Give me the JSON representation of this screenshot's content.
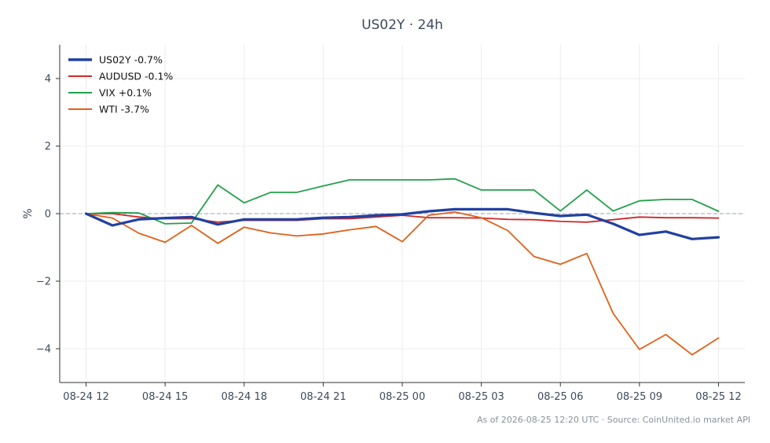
{
  "chart_data": {
    "type": "line",
    "title": "US02Y · 24h",
    "xlabel": "",
    "ylabel": "%",
    "x": [
      "08-24 12:00",
      "08-24 13:00",
      "08-24 14:00",
      "08-24 15:00",
      "08-24 16:00",
      "08-24 17:00",
      "08-24 18:00",
      "08-24 19:00",
      "08-24 20:00",
      "08-24 21:00",
      "08-24 22:00",
      "08-24 23:00",
      "08-25 00:00",
      "08-25 01:00",
      "08-25 02:00",
      "08-25 03:00",
      "08-25 04:00",
      "08-25 05:00",
      "08-25 06:00",
      "08-25 07:00",
      "08-25 08:00",
      "08-25 09:00",
      "08-25 10:00",
      "08-25 11:00",
      "08-25 12:00"
    ],
    "x_ticks": [
      "08-24 12",
      "08-24 15",
      "08-24 18",
      "08-24 21",
      "08-25 00",
      "08-25 03",
      "08-25 06",
      "08-25 09",
      "08-25 12"
    ],
    "y_ticks": [
      4,
      2,
      0,
      -2,
      -4
    ],
    "y_tick_labels": [
      "4",
      "2",
      "0",
      "−2",
      "−4"
    ],
    "ylim": [
      -5,
      5
    ],
    "xlim_hours": [
      -1,
      25
    ],
    "grid": true,
    "zero_line": true,
    "legend_position": "top-left",
    "series": [
      {
        "name": "US02Y -0.7%",
        "color": "#2140a0",
        "width": 3.2,
        "values": [
          0.0,
          -0.35,
          -0.17,
          -0.13,
          -0.1,
          -0.32,
          -0.17,
          -0.17,
          -0.17,
          -0.12,
          -0.1,
          -0.05,
          -0.02,
          0.07,
          0.13,
          0.13,
          0.13,
          0.02,
          -0.07,
          -0.03,
          -0.3,
          -0.63,
          -0.53,
          -0.75,
          -0.7
        ]
      },
      {
        "name": "AUDUSD -0.1%",
        "color": "#cc2a2a",
        "width": 1.8,
        "values": [
          0.0,
          0.0,
          -0.1,
          -0.15,
          -0.15,
          -0.25,
          -0.2,
          -0.2,
          -0.2,
          -0.15,
          -0.15,
          -0.1,
          -0.05,
          -0.12,
          -0.12,
          -0.13,
          -0.17,
          -0.18,
          -0.23,
          -0.25,
          -0.18,
          -0.1,
          -0.12,
          -0.12,
          -0.13
        ]
      },
      {
        "name": "VIX +0.1%",
        "color": "#22a04a",
        "width": 1.8,
        "values": [
          0.0,
          0.03,
          0.02,
          -0.3,
          -0.28,
          0.85,
          0.32,
          0.63,
          0.63,
          0.82,
          1.0,
          1.0,
          1.0,
          1.0,
          1.03,
          0.7,
          0.7,
          0.7,
          0.08,
          0.7,
          0.08,
          0.38,
          0.42,
          0.42,
          0.07
        ]
      },
      {
        "name": "WTI -3.7%",
        "color": "#e06018",
        "width": 1.8,
        "values": [
          0.0,
          -0.13,
          -0.58,
          -0.85,
          -0.35,
          -0.88,
          -0.4,
          -0.57,
          -0.66,
          -0.6,
          -0.48,
          -0.38,
          -0.83,
          -0.05,
          0.05,
          -0.12,
          -0.5,
          -1.27,
          -1.5,
          -1.18,
          -2.95,
          -4.02,
          -3.58,
          -4.18,
          -3.68
        ]
      }
    ],
    "footer": "As of 2026-08-25 12:20 UTC · Source: CoinUnited.io market API"
  }
}
